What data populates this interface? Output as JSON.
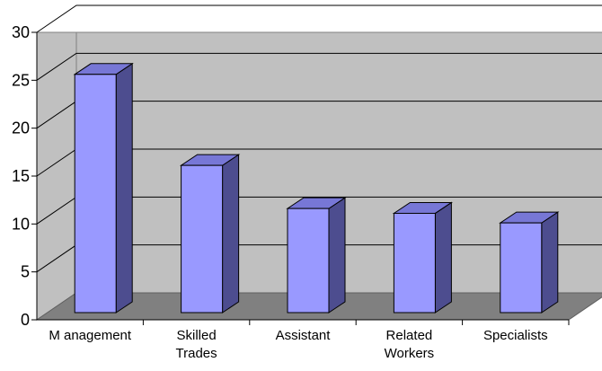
{
  "chart_data": {
    "type": "bar",
    "style": "3d-column",
    "categories": [
      [
        "M anagement"
      ],
      [
        "Skilled",
        "Trades"
      ],
      [
        "Assistant"
      ],
      [
        "Related",
        "Workers"
      ],
      [
        "Specialists"
      ]
    ],
    "values": [
      25.8,
      16.3,
      11.8,
      11.3,
      10.3
    ],
    "ylim": [
      0,
      30
    ],
    "yticks": [
      "0",
      "5",
      "10",
      "15",
      "20",
      "25",
      "30"
    ],
    "grid": true,
    "colors": {
      "bar_front": "#9999ff",
      "bar_side": "#4d4d8f",
      "bar_top": "#7777d6",
      "wall": "#c0c0c0",
      "floor": "#808080",
      "gridline": "#000000"
    }
  }
}
